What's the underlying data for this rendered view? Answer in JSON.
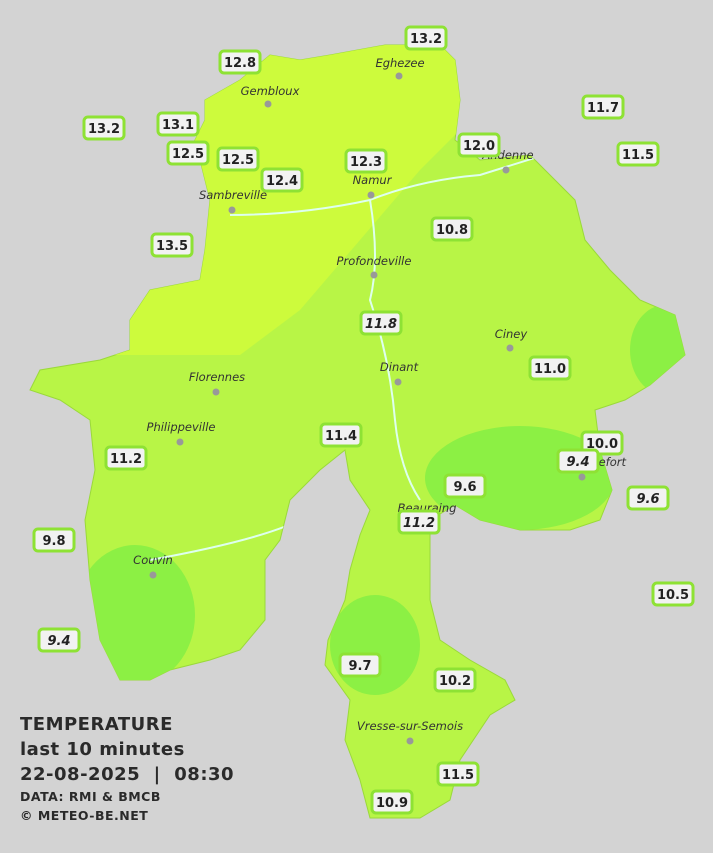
{
  "title": "TEMPERATURE",
  "subtitle": "last 10 minutes",
  "datetime": "22-08-2025  |  08:30",
  "source": "DATA: RMI & BMCB",
  "credit": "© METEO-BE.NET",
  "cities": [
    "Eghezee",
    "Gembloux",
    "Andenne",
    "Namur",
    "Sambreville",
    "Profondeville",
    "Ciney",
    "Dinant",
    "Florennes",
    "Philippeville",
    "Rochefort",
    "Beauraing",
    "Couvin",
    "Vresse-sur-Semois"
  ],
  "stations": [
    {
      "value": "13.2",
      "italic": false
    },
    {
      "value": "12.8",
      "italic": false
    },
    {
      "value": "13.2",
      "italic": false
    },
    {
      "value": "13.1",
      "italic": false
    },
    {
      "value": "12.5",
      "italic": false
    },
    {
      "value": "12.5",
      "italic": false
    },
    {
      "value": "12.4",
      "italic": false
    },
    {
      "value": "12.3",
      "italic": false
    },
    {
      "value": "12.0",
      "italic": false
    },
    {
      "value": "11.7",
      "italic": false
    },
    {
      "value": "11.5",
      "italic": false
    },
    {
      "value": "13.5",
      "italic": false
    },
    {
      "value": "10.8",
      "italic": false
    },
    {
      "value": "11.8",
      "italic": true
    },
    {
      "value": "11.0",
      "italic": false
    },
    {
      "value": "11.4",
      "italic": false
    },
    {
      "value": "10.0",
      "italic": false
    },
    {
      "value": "9.4",
      "italic": true
    },
    {
      "value": "11.2",
      "italic": false
    },
    {
      "value": "9.6",
      "italic": false
    },
    {
      "value": "9.6",
      "italic": true
    },
    {
      "value": "11.2",
      "italic": true
    },
    {
      "value": "9.8",
      "italic": false
    },
    {
      "value": "10.5",
      "italic": false
    },
    {
      "value": "9.4",
      "italic": true
    },
    {
      "value": "9.7",
      "italic": false
    },
    {
      "value": "10.2",
      "italic": false
    },
    {
      "value": "11.5",
      "italic": false
    },
    {
      "value": "10.9",
      "italic": false
    }
  ]
}
